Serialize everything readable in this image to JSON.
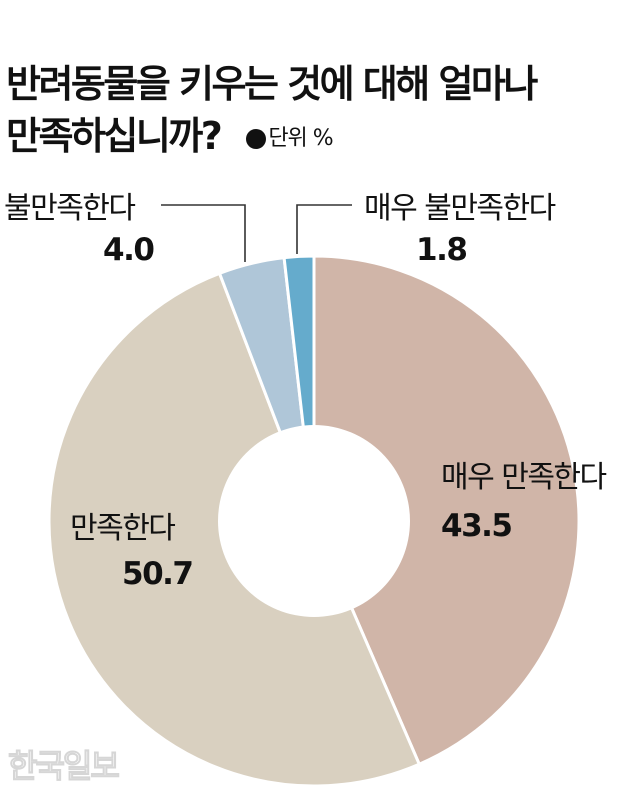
{
  "title": {
    "line1": "반려동물을 키우는 것에 대해 얼마나",
    "line2": "만족하십니까?",
    "unit": "단위 %"
  },
  "colors": {
    "very_satisfied": "#d0b5a8",
    "satisfied": "#d9d0c0",
    "dissatisfied": "#afc6d8",
    "very_dissatisfied": "#65abcc"
  },
  "labels": {
    "very_satisfied": {
      "name": "매우 만족한다",
      "value": "43.5"
    },
    "satisfied": {
      "name": "만족한다",
      "value": "50.7"
    },
    "dissatisfied": {
      "name": "불만족한다",
      "value": "4.0"
    },
    "very_dissatisfied": {
      "name": "매우 불만족한다",
      "value": "1.8"
    }
  },
  "logo": "한국일보",
  "chart_data": {
    "type": "pie",
    "variant": "donut",
    "title": "반려동물을 키우는 것에 대해 얼마나 만족하십니까?",
    "unit": "%",
    "categories": [
      "매우 만족한다",
      "만족한다",
      "불만족한다",
      "매우 불만족한다"
    ],
    "values": [
      43.5,
      50.7,
      4.0,
      1.8
    ],
    "colors": [
      "#d0b5a8",
      "#d9d0c0",
      "#afc6d8",
      "#65abcc"
    ],
    "start_angle": "12 o'clock, clockwise",
    "legend": "none (direct labels)"
  }
}
